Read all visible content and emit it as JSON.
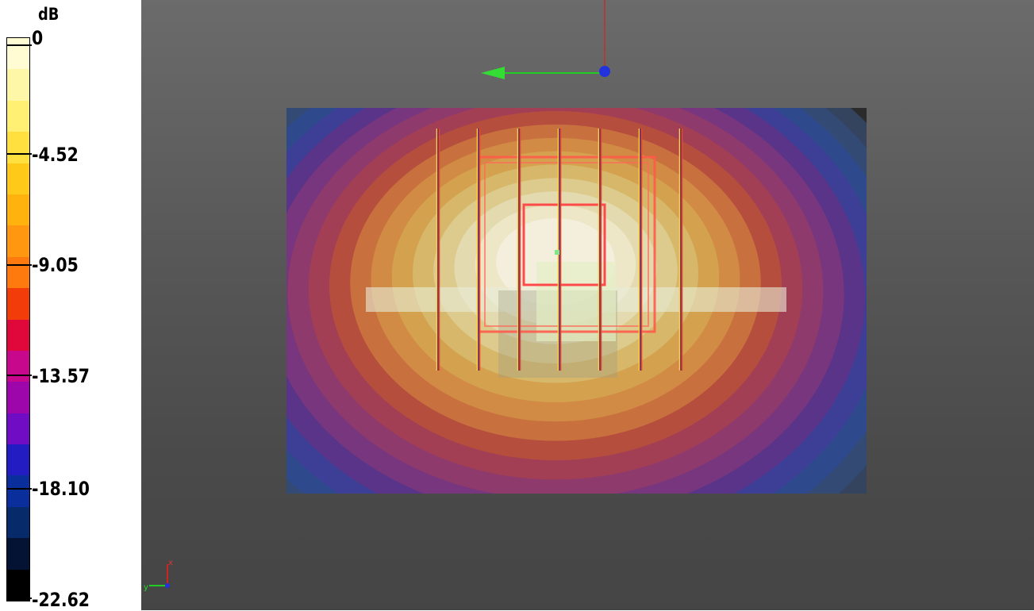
{
  "legend": {
    "unit": "dB",
    "ticks": [
      "0",
      "-4.52",
      "-9.05",
      "-13.57",
      "-18.10",
      "-22.62"
    ],
    "colors": [
      "#fffbd2",
      "#fff7a8",
      "#ffef73",
      "#ffe03e",
      "#ffc91a",
      "#ffb10e",
      "#ff9710",
      "#ff7a0e",
      "#f23c0a",
      "#e0083a",
      "#c7088c",
      "#9c06aa",
      "#6f0cc4",
      "#221cc2",
      "#0a2f9c",
      "#062a6a",
      "#041234",
      "#000000"
    ]
  },
  "viewport": {
    "background": "#5a5a5a",
    "field_colors": [
      "#f4eedc",
      "#ede7c8",
      "#e3dab0",
      "#dccb8c",
      "#d7b86a",
      "#d4a24f",
      "#d18b44",
      "#c9703f",
      "#b64e3e",
      "#a23f55",
      "#8e3a6c",
      "#78367e",
      "#5a3488",
      "#3c3f95",
      "#2f4a8c",
      "#324a74",
      "#34445e"
    ],
    "plane_background": "#2b2b2b"
  },
  "axes_triad": {
    "x_label": "x",
    "y_label": "y"
  }
}
